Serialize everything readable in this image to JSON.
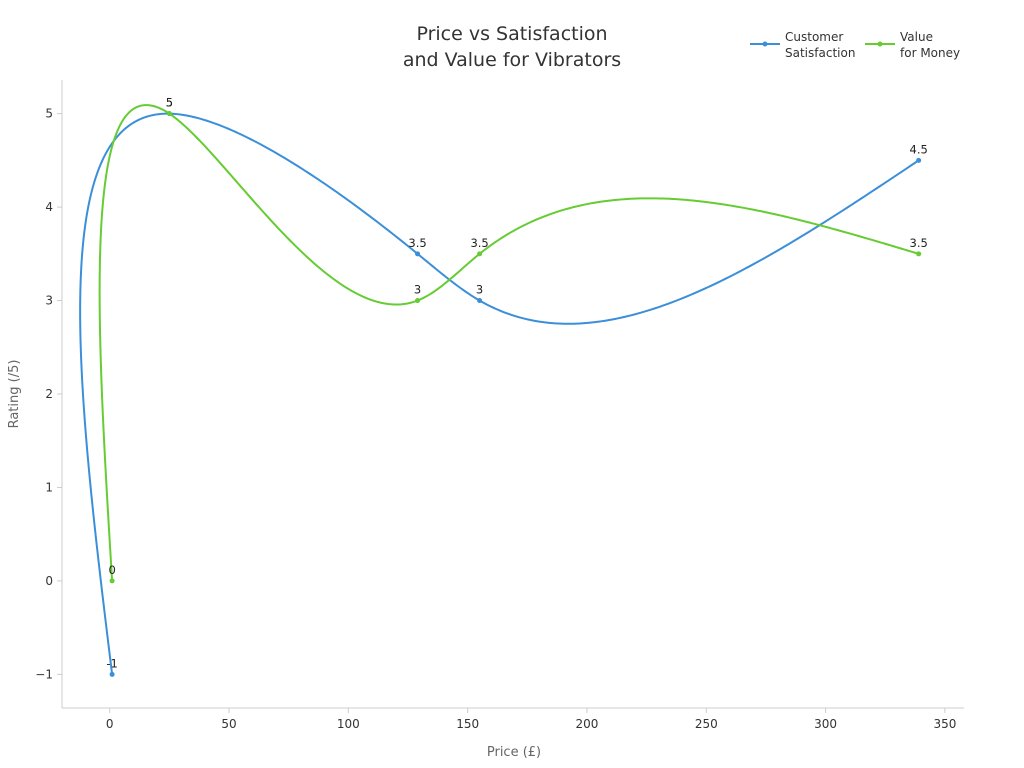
{
  "chart_data": {
    "type": "line",
    "title_lines": [
      "Price vs Satisfaction",
      "and Value for Vibrators"
    ],
    "xlabel": "Price (£)",
    "ylabel": "Rating (/5)",
    "xlim": [
      -20,
      358
    ],
    "ylim": [
      -1.36,
      5.36
    ],
    "xticks": [
      0,
      50,
      100,
      150,
      200,
      250,
      300,
      350
    ],
    "yticks": [
      -1,
      0,
      1,
      2,
      3,
      4,
      5
    ],
    "ytick_labels": [
      "−1",
      "0",
      "1",
      "2",
      "3",
      "4",
      "5"
    ],
    "grid": false,
    "legend_position": "top-right",
    "series": [
      {
        "name_lines": [
          "Customer",
          "Satisfaction"
        ],
        "color": "#3b8fd9",
        "points": [
          [
            1,
            -1
          ],
          [
            25,
            5
          ],
          [
            129,
            3.5
          ],
          [
            155,
            3
          ],
          [
            339,
            4.5
          ]
        ],
        "labels": [
          "-1",
          "5",
          "3.5",
          "3",
          "4.5"
        ]
      },
      {
        "name_lines": [
          "Value",
          "for Money"
        ],
        "color": "#66cc33",
        "points": [
          [
            1,
            0
          ],
          [
            25,
            5
          ],
          [
            129,
            3
          ],
          [
            155,
            3.5
          ],
          [
            339,
            3.5
          ]
        ],
        "labels": [
          "0",
          "5",
          "3",
          "3.5",
          "3.5"
        ]
      }
    ]
  }
}
